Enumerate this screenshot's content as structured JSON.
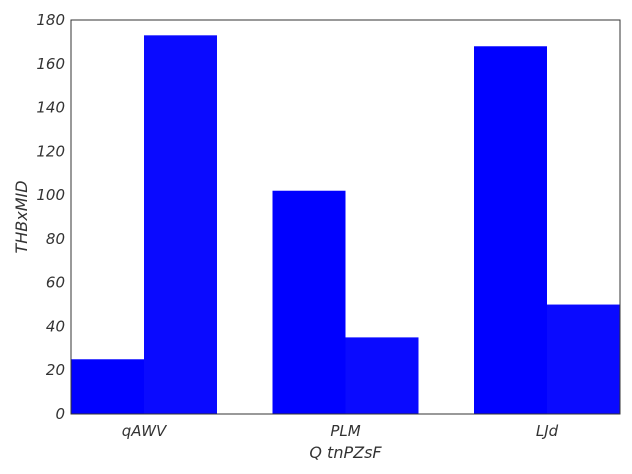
{
  "chart_data": {
    "type": "bar",
    "categories": [
      "qAWV",
      "PLM",
      "LJd"
    ],
    "series": [
      {
        "values": [
          25,
          102,
          168
        ],
        "color": "#0000ff"
      },
      {
        "values": [
          173,
          35,
          50
        ],
        "color": "#0a0aff"
      }
    ],
    "xlabel": "Q tnPZsF",
    "ylabel": "THBxMID",
    "ylim": [
      0,
      180
    ],
    "yticks": [
      0,
      20,
      40,
      60,
      80,
      100,
      120,
      140,
      160,
      180
    ],
    "grid": false,
    "legend": false
  }
}
